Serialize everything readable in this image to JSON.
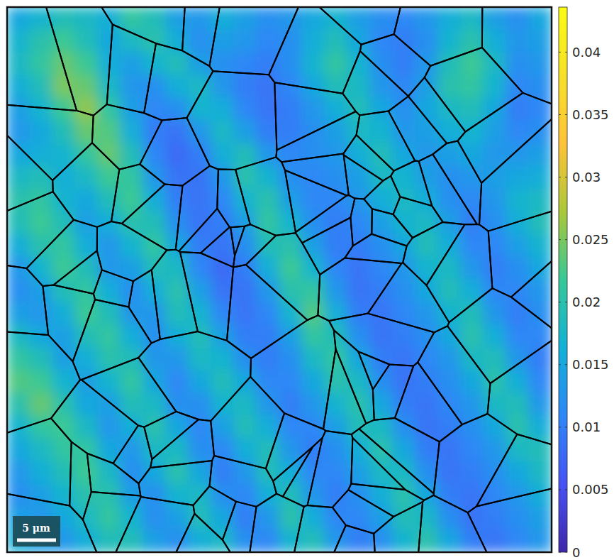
{
  "chart_data": {
    "type": "heatmap",
    "tick_labels": false,
    "annotations": [
      "5 μm"
    ],
    "colorbar_lim": [
      0,
      0.0436
    ],
    "colorbar_ticks": [
      0,
      0.005,
      0.01,
      0.015,
      0.02,
      0.025,
      0.03,
      0.035,
      0.04
    ],
    "cells": [
      [
        0.015,
        0.017,
        0.019,
        0.018,
        0.016,
        0.021,
        0.019,
        0.014,
        0.013,
        0.016,
        0.014,
        0.012,
        0.013,
        0.015,
        0.017,
        0.014,
        0.012,
        0.011,
        0.013,
        0.016,
        0.018,
        0.014,
        0.012,
        0.015
      ],
      [
        0.017,
        0.02,
        0.022,
        0.019,
        0.015,
        0.018,
        0.02,
        0.016,
        0.012,
        0.014,
        0.013,
        0.011,
        0.012,
        0.016,
        0.019,
        0.015,
        0.011,
        0.01,
        0.012,
        0.017,
        0.02,
        0.016,
        0.013,
        0.014
      ],
      [
        0.018,
        0.021,
        0.024,
        0.022,
        0.016,
        0.014,
        0.017,
        0.019,
        0.014,
        0.012,
        0.011,
        0.01,
        0.012,
        0.017,
        0.021,
        0.017,
        0.012,
        0.01,
        0.013,
        0.019,
        0.022,
        0.018,
        0.012,
        0.013
      ],
      [
        0.016,
        0.019,
        0.025,
        0.024,
        0.018,
        0.013,
        0.012,
        0.016,
        0.018,
        0.013,
        0.01,
        0.009,
        0.011,
        0.015,
        0.019,
        0.018,
        0.013,
        0.011,
        0.014,
        0.02,
        0.021,
        0.017,
        0.011,
        0.012
      ],
      [
        0.014,
        0.017,
        0.022,
        0.026,
        0.021,
        0.014,
        0.011,
        0.012,
        0.017,
        0.016,
        0.011,
        0.009,
        0.01,
        0.013,
        0.016,
        0.019,
        0.015,
        0.012,
        0.015,
        0.018,
        0.019,
        0.015,
        0.01,
        0.011
      ],
      [
        0.013,
        0.015,
        0.019,
        0.024,
        0.023,
        0.016,
        0.01,
        0.009,
        0.013,
        0.018,
        0.014,
        0.01,
        0.01,
        0.012,
        0.014,
        0.018,
        0.017,
        0.013,
        0.014,
        0.016,
        0.017,
        0.014,
        0.011,
        0.012
      ],
      [
        0.015,
        0.016,
        0.017,
        0.021,
        0.024,
        0.019,
        0.011,
        0.008,
        0.01,
        0.016,
        0.019,
        0.013,
        0.011,
        0.012,
        0.013,
        0.016,
        0.019,
        0.015,
        0.013,
        0.014,
        0.015,
        0.013,
        0.013,
        0.014
      ],
      [
        0.018,
        0.019,
        0.016,
        0.018,
        0.022,
        0.021,
        0.013,
        0.009,
        0.009,
        0.013,
        0.02,
        0.017,
        0.012,
        0.011,
        0.012,
        0.014,
        0.018,
        0.017,
        0.014,
        0.012,
        0.013,
        0.014,
        0.015,
        0.016
      ],
      [
        0.02,
        0.021,
        0.017,
        0.015,
        0.019,
        0.022,
        0.016,
        0.01,
        0.009,
        0.011,
        0.017,
        0.02,
        0.014,
        0.011,
        0.011,
        0.013,
        0.016,
        0.018,
        0.016,
        0.012,
        0.011,
        0.013,
        0.017,
        0.018
      ],
      [
        0.019,
        0.022,
        0.019,
        0.014,
        0.016,
        0.02,
        0.019,
        0.012,
        0.009,
        0.01,
        0.014,
        0.021,
        0.017,
        0.012,
        0.01,
        0.011,
        0.014,
        0.017,
        0.018,
        0.014,
        0.01,
        0.012,
        0.016,
        0.019
      ],
      [
        0.016,
        0.02,
        0.021,
        0.016,
        0.013,
        0.017,
        0.021,
        0.015,
        0.01,
        0.009,
        0.012,
        0.019,
        0.02,
        0.014,
        0.01,
        0.01,
        0.012,
        0.015,
        0.019,
        0.016,
        0.011,
        0.011,
        0.014,
        0.017
      ],
      [
        0.013,
        0.017,
        0.022,
        0.019,
        0.013,
        0.014,
        0.019,
        0.018,
        0.011,
        0.008,
        0.01,
        0.016,
        0.022,
        0.017,
        0.011,
        0.009,
        0.011,
        0.013,
        0.017,
        0.018,
        0.013,
        0.01,
        0.012,
        0.015
      ],
      [
        0.012,
        0.014,
        0.019,
        0.021,
        0.016,
        0.012,
        0.016,
        0.02,
        0.014,
        0.009,
        0.009,
        0.013,
        0.02,
        0.021,
        0.013,
        0.009,
        0.01,
        0.012,
        0.015,
        0.019,
        0.016,
        0.011,
        0.011,
        0.013
      ],
      [
        0.014,
        0.013,
        0.016,
        0.022,
        0.019,
        0.013,
        0.013,
        0.019,
        0.017,
        0.011,
        0.009,
        0.011,
        0.017,
        0.023,
        0.016,
        0.01,
        0.009,
        0.011,
        0.013,
        0.017,
        0.019,
        0.013,
        0.01,
        0.012
      ],
      [
        0.018,
        0.015,
        0.014,
        0.019,
        0.021,
        0.016,
        0.012,
        0.016,
        0.019,
        0.014,
        0.01,
        0.01,
        0.014,
        0.021,
        0.019,
        0.012,
        0.009,
        0.01,
        0.012,
        0.015,
        0.02,
        0.016,
        0.011,
        0.011
      ],
      [
        0.021,
        0.019,
        0.014,
        0.016,
        0.02,
        0.019,
        0.013,
        0.013,
        0.018,
        0.017,
        0.012,
        0.01,
        0.012,
        0.018,
        0.021,
        0.015,
        0.01,
        0.009,
        0.011,
        0.013,
        0.018,
        0.019,
        0.013,
        0.01
      ],
      [
        0.023,
        0.022,
        0.017,
        0.014,
        0.017,
        0.021,
        0.015,
        0.011,
        0.015,
        0.019,
        0.015,
        0.011,
        0.011,
        0.015,
        0.02,
        0.018,
        0.012,
        0.009,
        0.01,
        0.012,
        0.015,
        0.02,
        0.016,
        0.011
      ],
      [
        0.02,
        0.024,
        0.02,
        0.015,
        0.014,
        0.019,
        0.018,
        0.012,
        0.012,
        0.017,
        0.018,
        0.013,
        0.01,
        0.013,
        0.017,
        0.02,
        0.015,
        0.01,
        0.009,
        0.011,
        0.013,
        0.018,
        0.019,
        0.013
      ],
      [
        0.017,
        0.021,
        0.022,
        0.018,
        0.013,
        0.016,
        0.02,
        0.015,
        0.011,
        0.014,
        0.019,
        0.016,
        0.011,
        0.011,
        0.014,
        0.019,
        0.018,
        0.012,
        0.009,
        0.01,
        0.012,
        0.015,
        0.02,
        0.016
      ],
      [
        0.015,
        0.018,
        0.021,
        0.021,
        0.015,
        0.013,
        0.018,
        0.018,
        0.012,
        0.011,
        0.016,
        0.019,
        0.013,
        0.01,
        0.012,
        0.016,
        0.02,
        0.015,
        0.01,
        0.009,
        0.011,
        0.013,
        0.018,
        0.019
      ],
      [
        0.013,
        0.016,
        0.019,
        0.022,
        0.018,
        0.012,
        0.015,
        0.02,
        0.015,
        0.01,
        0.013,
        0.019,
        0.016,
        0.011,
        0.011,
        0.014,
        0.018,
        0.018,
        0.012,
        0.009,
        0.01,
        0.012,
        0.015,
        0.018
      ],
      [
        0.012,
        0.014,
        0.017,
        0.02,
        0.02,
        0.014,
        0.012,
        0.017,
        0.018,
        0.012,
        0.011,
        0.016,
        0.019,
        0.013,
        0.01,
        0.012,
        0.016,
        0.02,
        0.015,
        0.01,
        0.009,
        0.011,
        0.013,
        0.016
      ],
      [
        0.014,
        0.013,
        0.015,
        0.018,
        0.021,
        0.017,
        0.012,
        0.014,
        0.019,
        0.015,
        0.01,
        0.013,
        0.02,
        0.016,
        0.011,
        0.011,
        0.014,
        0.019,
        0.018,
        0.012,
        0.009,
        0.01,
        0.012,
        0.014
      ],
      [
        0.016,
        0.014,
        0.013,
        0.016,
        0.019,
        0.019,
        0.014,
        0.012,
        0.016,
        0.018,
        0.012,
        0.011,
        0.017,
        0.019,
        0.013,
        0.01,
        0.012,
        0.017,
        0.02,
        0.015,
        0.01,
        0.009,
        0.011,
        0.013
      ]
    ]
  }
}
